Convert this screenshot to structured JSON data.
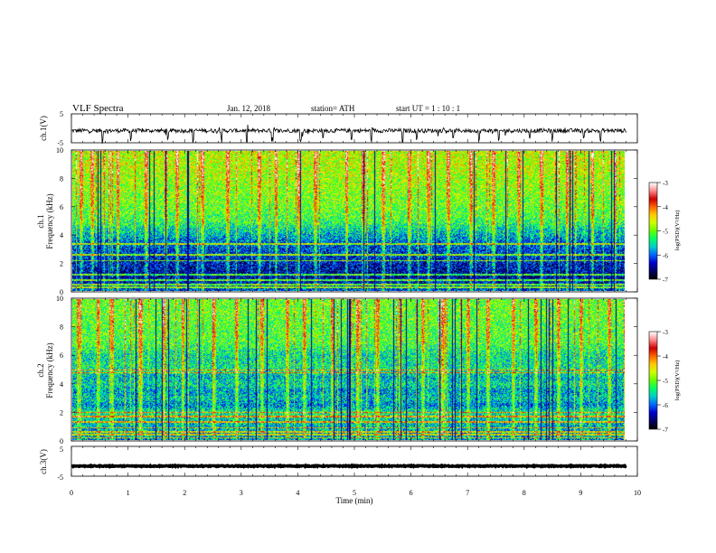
{
  "header": {
    "title": "VLF  Spectra",
    "date": "Jan. 12, 2018",
    "station": "station= ATH",
    "start": "start  UT  =    1  : 10 : 1"
  },
  "colors": {
    "spec_stops": [
      "#000000",
      "#000066",
      "#0000cc",
      "#0066ff",
      "#00cccc",
      "#00ff66",
      "#66ff00",
      "#ccff00",
      "#ffcc00",
      "#ff6600",
      "#cc0000",
      "#ff8888",
      "#ffffff"
    ]
  },
  "chart_data": [
    {
      "type": "line",
      "name": "ch1-waveform",
      "ylabel": "ch.1(V)",
      "ylim": [
        -5,
        5
      ],
      "yticks": [
        "5",
        "-5"
      ],
      "xlim": [
        0,
        10
      ],
      "data_end": 9.8,
      "baseline": -0.8,
      "noise": 0.7,
      "spike_times": [
        0.55,
        1.05,
        1.7,
        2.15,
        2.65,
        3.1,
        3.55,
        4.05,
        4.45,
        4.95,
        5.3,
        5.85,
        6.1,
        6.75,
        7.2,
        7.55,
        8.1,
        8.5,
        9.05,
        9.35
      ],
      "spike_amp": 4.0
    },
    {
      "type": "heatmap",
      "name": "ch1-spectrogram",
      "ylabel": "Frequency  (kHz)",
      "channel": "ch.1",
      "yticks": [
        "0",
        "2",
        "4",
        "6",
        "8",
        "10"
      ],
      "ylim": [
        0,
        10
      ],
      "xlim": [
        0,
        10
      ],
      "data_end": 9.8,
      "colorbar_label": "log(PSD)(V²/Hz)",
      "colorbar_ticks": [
        "-3",
        "-4",
        "-5",
        "-6",
        "-7"
      ],
      "colorbar_range": [
        -7,
        -3
      ],
      "profile_khz": [
        0,
        0.5,
        1.0,
        1.5,
        2.0,
        2.5,
        3.0,
        3.5,
        4.0,
        4.5,
        5.0,
        6.0,
        7.0,
        8.0,
        9.0,
        10.0
      ],
      "profile_logpsd": [
        -6.0,
        -6.3,
        -6.5,
        -6.4,
        -6.3,
        -6.2,
        -6.1,
        -6.0,
        -5.7,
        -5.5,
        -5.2,
        -5.0,
        -4.9,
        -4.8,
        -4.7,
        -4.7
      ],
      "lines_khz": [
        0.3,
        0.5,
        0.8,
        1.2,
        2.2,
        2.6,
        3.4
      ],
      "bursts": [
        0.15,
        0.35,
        0.8,
        1.3,
        1.65,
        1.85,
        2.3,
        2.75,
        3.3,
        3.6,
        4.0,
        4.3,
        4.85,
        5.15,
        5.5,
        5.95,
        6.3,
        6.65,
        7.05,
        7.45,
        7.9,
        8.3,
        8.75,
        9.2,
        9.6
      ]
    },
    {
      "type": "heatmap",
      "name": "ch2-spectrogram",
      "ylabel": "Frequency  (kHz)",
      "channel": "ch.2",
      "yticks": [
        "0",
        "2",
        "4",
        "6",
        "8",
        "10"
      ],
      "ylim": [
        0,
        10
      ],
      "xlim": [
        0,
        10
      ],
      "data_end": 9.8,
      "colorbar_label": "log(PSD)(V²/Hz)",
      "colorbar_ticks": [
        "-3",
        "-4",
        "-5",
        "-6",
        "-7"
      ],
      "colorbar_range": [
        -7,
        -3
      ],
      "profile_khz": [
        0,
        0.5,
        1.0,
        1.5,
        2.0,
        2.5,
        3.0,
        3.5,
        4.0,
        4.5,
        5.0,
        6.0,
        7.0,
        8.0,
        9.0,
        10.0
      ],
      "profile_logpsd": [
        -5.8,
        -5.8,
        -5.7,
        -5.6,
        -5.4,
        -5.9,
        -5.6,
        -5.8,
        -5.5,
        -5.7,
        -5.4,
        -5.5,
        -5.1,
        -5.1,
        -5.0,
        -5.0
      ],
      "lines_khz": [
        0.2,
        0.4,
        0.6,
        0.9,
        1.3,
        1.7,
        2.0,
        4.8,
        5.0
      ],
      "bursts": [
        0.1,
        0.45,
        0.7,
        1.2,
        1.6,
        1.95,
        2.5,
        2.9,
        3.35,
        3.8,
        4.1,
        4.6,
        5.05,
        5.4,
        5.8,
        6.2,
        6.55,
        7.0,
        7.35,
        7.8,
        8.2,
        8.6,
        9.0,
        9.5
      ]
    },
    {
      "type": "line",
      "name": "ch3-waveform",
      "ylabel": "ch.3(V)",
      "ylim": [
        -5,
        5
      ],
      "yticks": [
        "5",
        "-5"
      ],
      "xlim": [
        0,
        10
      ],
      "data_end": 9.8,
      "baseline": -1.6,
      "noise": 0.15,
      "spike_times": [],
      "spike_amp": 0
    }
  ],
  "x_axis": {
    "label": "Time  (min)",
    "ticks": [
      "0",
      "1",
      "2",
      "3",
      "4",
      "5",
      "6",
      "7",
      "8",
      "9",
      "10"
    ]
  }
}
